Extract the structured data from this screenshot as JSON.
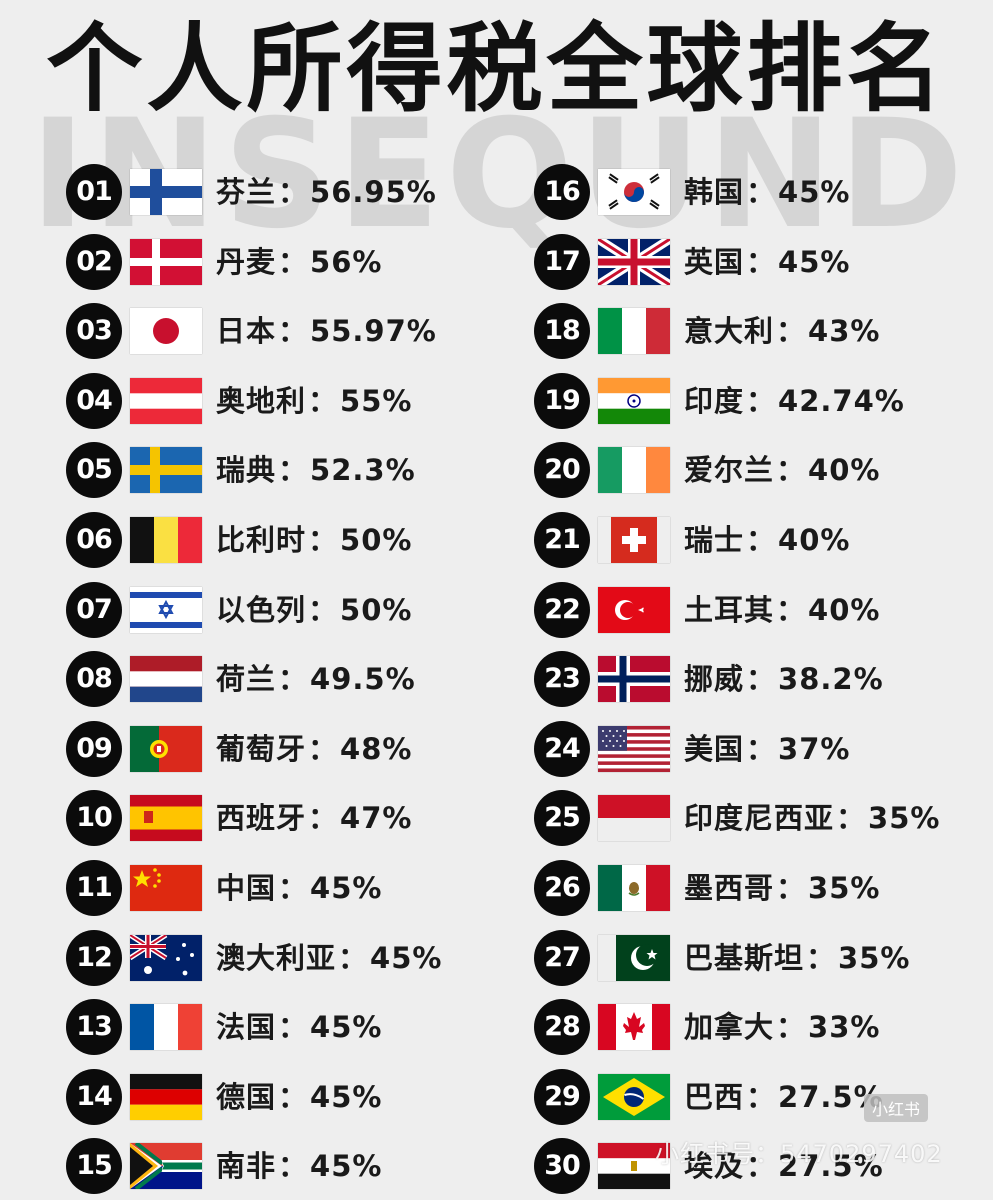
{
  "title": "个人所得税全球排名",
  "background_text": "INSEQUNDS",
  "separator": "：",
  "watermark": {
    "logo": "小红书",
    "id": "小红书号：5470297402"
  },
  "left": [
    {
      "rank": "01",
      "country": "芬兰",
      "rate": "56.95%",
      "flag": "finland"
    },
    {
      "rank": "02",
      "country": "丹麦",
      "rate": "56%",
      "flag": "denmark"
    },
    {
      "rank": "03",
      "country": "日本",
      "rate": "55.97%",
      "flag": "japan"
    },
    {
      "rank": "04",
      "country": "奥地利",
      "rate": "55%",
      "flag": "austria"
    },
    {
      "rank": "05",
      "country": "瑞典",
      "rate": "52.3%",
      "flag": "sweden"
    },
    {
      "rank": "06",
      "country": "比利时",
      "rate": "50%",
      "flag": "belgium"
    },
    {
      "rank": "07",
      "country": "以色列",
      "rate": "50%",
      "flag": "israel"
    },
    {
      "rank": "08",
      "country": "荷兰",
      "rate": "49.5%",
      "flag": "netherlands"
    },
    {
      "rank": "09",
      "country": "葡萄牙",
      "rate": "48%",
      "flag": "portugal"
    },
    {
      "rank": "10",
      "country": "西班牙",
      "rate": "47%",
      "flag": "spain"
    },
    {
      "rank": "11",
      "country": "中国",
      "rate": "45%",
      "flag": "china"
    },
    {
      "rank": "12",
      "country": "澳大利亚",
      "rate": "45%",
      "flag": "australia"
    },
    {
      "rank": "13",
      "country": "法国",
      "rate": "45%",
      "flag": "france"
    },
    {
      "rank": "14",
      "country": "德国",
      "rate": "45%",
      "flag": "germany"
    },
    {
      "rank": "15",
      "country": "南非",
      "rate": "45%",
      "flag": "south-africa"
    }
  ],
  "right": [
    {
      "rank": "16",
      "country": "韩国",
      "rate": "45%",
      "flag": "korea"
    },
    {
      "rank": "17",
      "country": "英国",
      "rate": "45%",
      "flag": "uk"
    },
    {
      "rank": "18",
      "country": "意大利",
      "rate": "43%",
      "flag": "italy"
    },
    {
      "rank": "19",
      "country": "印度",
      "rate": "42.74%",
      "flag": "india"
    },
    {
      "rank": "20",
      "country": "爱尔兰",
      "rate": "40%",
      "flag": "ireland"
    },
    {
      "rank": "21",
      "country": "瑞士",
      "rate": "40%",
      "flag": "switzerland"
    },
    {
      "rank": "22",
      "country": "土耳其",
      "rate": "40%",
      "flag": "turkey"
    },
    {
      "rank": "23",
      "country": "挪威",
      "rate": "38.2%",
      "flag": "norway"
    },
    {
      "rank": "24",
      "country": "美国",
      "rate": "37%",
      "flag": "usa"
    },
    {
      "rank": "25",
      "country": "印度尼西亚",
      "rate": "35%",
      "flag": "indonesia"
    },
    {
      "rank": "26",
      "country": "墨西哥",
      "rate": "35%",
      "flag": "mexico"
    },
    {
      "rank": "27",
      "country": "巴基斯坦",
      "rate": "35%",
      "flag": "pakistan"
    },
    {
      "rank": "28",
      "country": "加拿大",
      "rate": "33%",
      "flag": "canada"
    },
    {
      "rank": "29",
      "country": "巴西",
      "rate": "27.5%",
      "flag": "brazil"
    },
    {
      "rank": "30",
      "country": "埃及",
      "rate": "27.5%",
      "flag": "egypt"
    }
  ]
}
